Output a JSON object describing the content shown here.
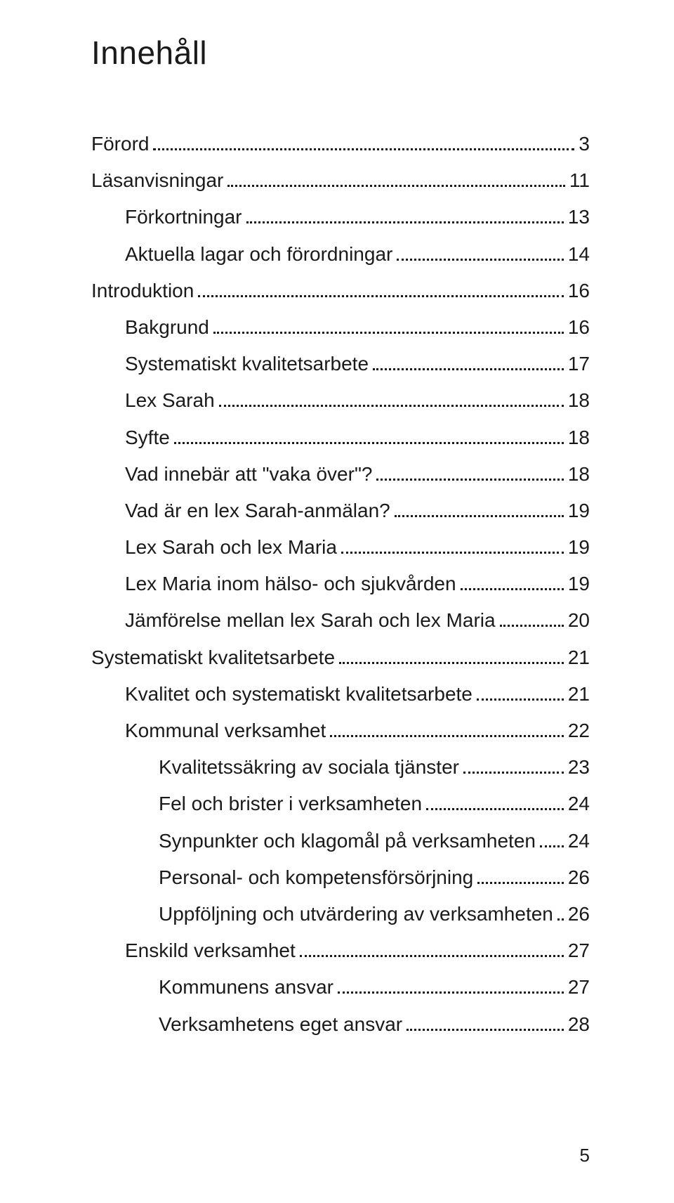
{
  "title": "Innehåll",
  "page_number": "5",
  "toc": [
    {
      "level": 0,
      "label": "Förord",
      "page": "3"
    },
    {
      "level": 0,
      "label": "Läsanvisningar",
      "page": "11"
    },
    {
      "level": 1,
      "label": "Förkortningar",
      "page": "13"
    },
    {
      "level": 1,
      "label": "Aktuella lagar och förordningar",
      "page": "14"
    },
    {
      "level": 0,
      "label": "Introduktion",
      "page": "16"
    },
    {
      "level": 1,
      "label": "Bakgrund",
      "page": "16"
    },
    {
      "level": 1,
      "label": "Systematiskt kvalitetsarbete",
      "page": "17"
    },
    {
      "level": 1,
      "label": "Lex Sarah",
      "page": "18"
    },
    {
      "level": 1,
      "label": "Syfte",
      "page": "18"
    },
    {
      "level": 1,
      "label": "Vad innebär att \"vaka över\"?",
      "page": "18"
    },
    {
      "level": 1,
      "label": "Vad är en lex Sarah-anmälan?",
      "page": "19"
    },
    {
      "level": 1,
      "label": "Lex Sarah och lex Maria",
      "page": "19"
    },
    {
      "level": 1,
      "label": "Lex Maria inom hälso- och sjukvården",
      "page": "19"
    },
    {
      "level": 1,
      "label": "Jämförelse mellan lex Sarah och lex Maria",
      "page": "20"
    },
    {
      "level": 0,
      "label": "Systematiskt kvalitetsarbete",
      "page": "21"
    },
    {
      "level": 1,
      "label": "Kvalitet och systematiskt kvalitetsarbete",
      "page": "21"
    },
    {
      "level": 1,
      "label": "Kommunal verksamhet",
      "page": "22"
    },
    {
      "level": 2,
      "label": "Kvalitetssäkring av sociala tjänster",
      "page": "23"
    },
    {
      "level": 2,
      "label": "Fel och brister i verksamheten",
      "page": "24"
    },
    {
      "level": 2,
      "label": "Synpunkter och klagomål på verksamheten",
      "page": "24"
    },
    {
      "level": 2,
      "label": "Personal- och kompetensförsörjning",
      "page": "26"
    },
    {
      "level": 2,
      "label": "Uppföljning och utvärdering av verksamheten",
      "page": "26"
    },
    {
      "level": 1,
      "label": "Enskild verksamhet",
      "page": "27"
    },
    {
      "level": 2,
      "label": "Kommunens ansvar",
      "page": "27"
    },
    {
      "level": 2,
      "label": "Verksamhetens eget ansvar",
      "page": "28"
    }
  ]
}
